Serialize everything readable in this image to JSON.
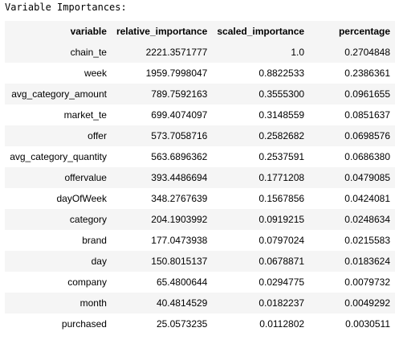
{
  "caption": "Variable Importances:",
  "table": {
    "headers": [
      "variable",
      "relative_importance",
      "scaled_importance",
      "percentage"
    ],
    "rows": [
      [
        "chain_te",
        "2221.3571777",
        "1.0",
        "0.2704848"
      ],
      [
        "week",
        "1959.7998047",
        "0.8822533",
        "0.2386361"
      ],
      [
        "avg_category_amount",
        "789.7592163",
        "0.3555300",
        "0.0961655"
      ],
      [
        "market_te",
        "699.4074097",
        "0.3148559",
        "0.0851637"
      ],
      [
        "offer",
        "573.7058716",
        "0.2582682",
        "0.0698576"
      ],
      [
        "avg_category_quantity",
        "563.6896362",
        "0.2537591",
        "0.0686380"
      ],
      [
        "offervalue",
        "393.4486694",
        "0.1771208",
        "0.0479085"
      ],
      [
        "dayOfWeek",
        "348.2767639",
        "0.1567856",
        "0.0424081"
      ],
      [
        "category",
        "204.1903992",
        "0.0919215",
        "0.0248634"
      ],
      [
        "brand",
        "177.0473938",
        "0.0797024",
        "0.0215583"
      ],
      [
        "day",
        "150.8015137",
        "0.0678871",
        "0.0183624"
      ],
      [
        "company",
        "65.4800644",
        "0.0294775",
        "0.0079732"
      ],
      [
        "month",
        "40.4814529",
        "0.0182237",
        "0.0049292"
      ],
      [
        "purchased",
        "25.0573235",
        "0.0112802",
        "0.0030511"
      ]
    ]
  }
}
